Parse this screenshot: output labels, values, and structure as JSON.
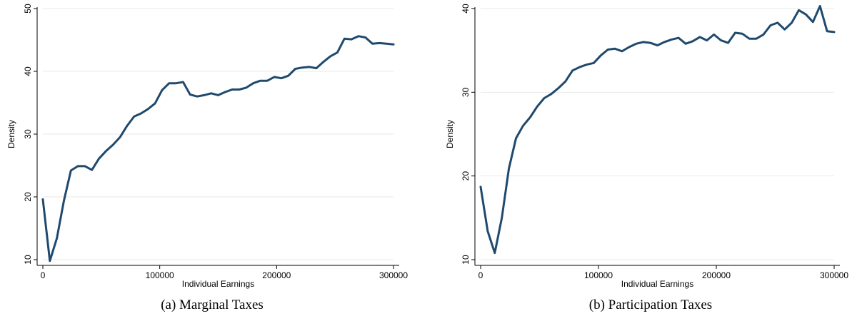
{
  "chart_data": [
    {
      "type": "line",
      "caption": "(a) Marginal Taxes",
      "xlabel": "Individual Earnings",
      "ylabel": "Density",
      "xlim": [
        0,
        300000
      ],
      "ylim": [
        10,
        50
      ],
      "xticks": [
        "0",
        "100000",
        "200000",
        "300000"
      ],
      "yticks": [
        "10",
        "20",
        "30",
        "40",
        "50"
      ],
      "grid": true,
      "color": "#1f4a6e",
      "series": [
        {
          "x": [
            0,
            6000,
            12000,
            18000,
            24000,
            30000,
            36000,
            42000,
            48000,
            54000,
            60000,
            66000,
            72000,
            78000,
            84000,
            90000,
            96000,
            102000,
            108000,
            114000,
            120000,
            126000,
            132000,
            138000,
            144000,
            150000,
            156000,
            162000,
            168000,
            174000,
            180000,
            186000,
            192000,
            198000,
            204000,
            210000,
            216000,
            222000,
            228000,
            234000,
            240000,
            246000,
            252000,
            258000,
            264000,
            270000,
            276000,
            282000,
            288000,
            294000,
            300000
          ],
          "y": [
            19.6,
            9.8,
            13.4,
            19.4,
            24.2,
            24.9,
            24.9,
            24.3,
            26.1,
            27.3,
            28.3,
            29.5,
            31.3,
            32.8,
            33.3,
            34.0,
            34.9,
            37.0,
            38.1,
            38.1,
            38.3,
            36.3,
            36.0,
            36.2,
            36.5,
            36.2,
            36.7,
            37.1,
            37.1,
            37.4,
            38.1,
            38.5,
            38.5,
            39.1,
            38.9,
            39.3,
            40.4,
            40.6,
            40.7,
            40.5,
            41.5,
            42.4,
            43.0,
            45.2,
            45.1,
            45.6,
            45.4,
            44.4,
            44.5,
            44.4,
            44.3
          ]
        }
      ]
    },
    {
      "type": "line",
      "caption": "(b) Participation Taxes",
      "xlabel": "Individual Earnings",
      "ylabel": "Density",
      "xlim": [
        0,
        300000
      ],
      "ylim": [
        10,
        40
      ],
      "xticks": [
        "0",
        "100000",
        "200000",
        "300000"
      ],
      "yticks": [
        "10",
        "20",
        "30",
        "40"
      ],
      "grid": true,
      "color": "#1f4a6e",
      "series": [
        {
          "x": [
            0,
            6000,
            12000,
            18000,
            24000,
            30000,
            36000,
            42000,
            48000,
            54000,
            60000,
            66000,
            72000,
            78000,
            84000,
            90000,
            96000,
            102000,
            108000,
            114000,
            120000,
            126000,
            132000,
            138000,
            144000,
            150000,
            156000,
            162000,
            168000,
            174000,
            180000,
            186000,
            192000,
            198000,
            204000,
            210000,
            216000,
            222000,
            228000,
            234000,
            240000,
            246000,
            252000,
            258000,
            264000,
            270000,
            276000,
            282000,
            288000,
            294000,
            300000
          ],
          "y": [
            18.7,
            13.4,
            10.8,
            15.0,
            20.9,
            24.5,
            26.0,
            27.0,
            28.3,
            29.3,
            29.8,
            30.5,
            31.3,
            32.6,
            33.0,
            33.3,
            33.5,
            34.4,
            35.1,
            35.2,
            34.9,
            35.4,
            35.8,
            36.0,
            35.9,
            35.6,
            36.0,
            36.3,
            36.5,
            35.8,
            36.1,
            36.6,
            36.2,
            36.9,
            36.2,
            35.9,
            37.1,
            37.0,
            36.4,
            36.4,
            36.9,
            38.0,
            38.3,
            37.5,
            38.3,
            39.8,
            39.3,
            38.4,
            40.3,
            37.3,
            37.2
          ]
        }
      ]
    }
  ]
}
